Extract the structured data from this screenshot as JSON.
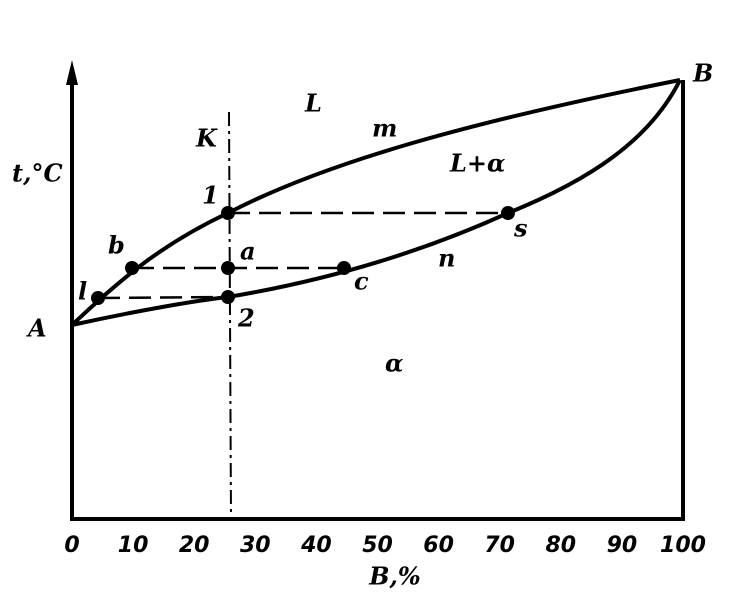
{
  "axes": {
    "y_label": "t,°C",
    "x_label": "B,%",
    "x_ticks": [
      "0",
      "10",
      "20",
      "30",
      "40",
      "50",
      "60",
      "70",
      "80",
      "90",
      "100"
    ]
  },
  "points": {
    "A": "A",
    "B": "B",
    "K": "K",
    "p1": "1",
    "p2": "2",
    "a": "a",
    "b": "b",
    "c": "c",
    "l": "l",
    "s": "s"
  },
  "curves": {
    "m": "m",
    "n": "n"
  },
  "regions": {
    "liquid": "L",
    "two_phase": "L+α",
    "solid": "α"
  }
}
